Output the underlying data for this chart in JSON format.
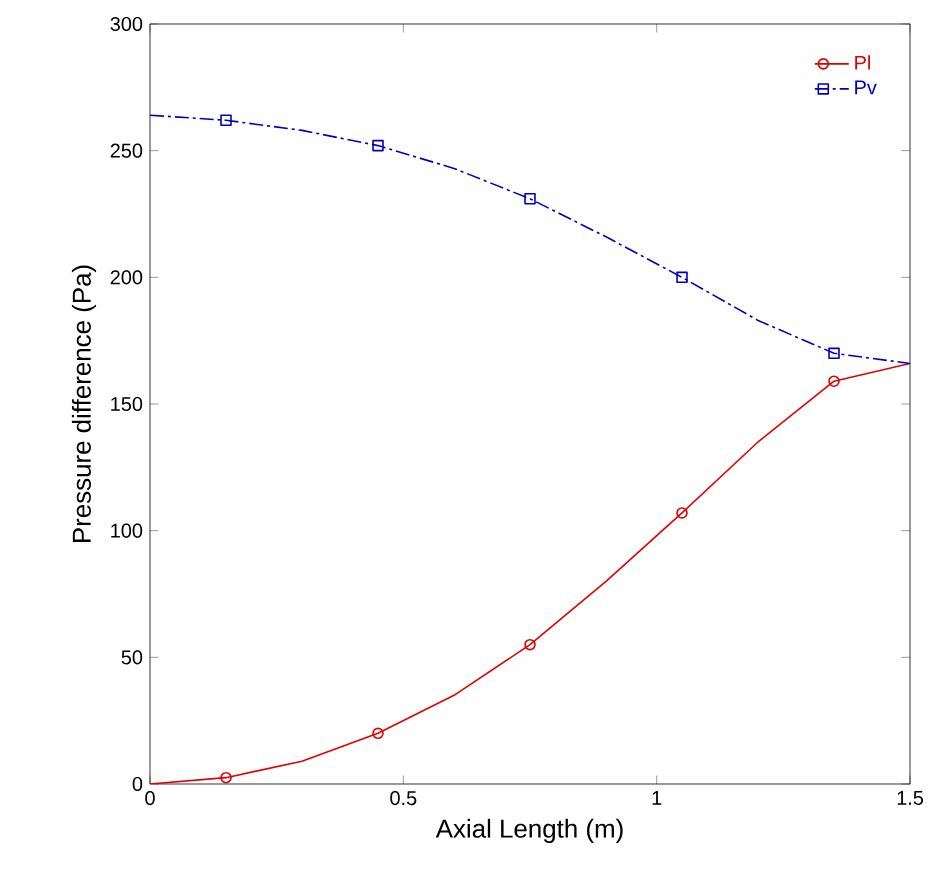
{
  "chart_data": {
    "type": "line",
    "xlabel": "Axial Length (m)",
    "ylabel": "Pressure difference (Pa)",
    "x": [
      0,
      0.15,
      0.3,
      0.45,
      0.6,
      0.75,
      0.9,
      1.05,
      1.2,
      1.35,
      1.5
    ],
    "series": [
      {
        "color": "#e00000",
        "marker": "none",
        "line_style": "solid",
        "values": [
          0,
          2.5,
          9,
          20,
          35,
          55,
          80,
          107,
          135,
          159,
          166
        ]
      },
      {
        "name": "Pl",
        "type": "scatter",
        "color": "#e00000",
        "marker": "circle",
        "line_style": "solid",
        "x": [
          0.15,
          0.45,
          0.75,
          1.05,
          1.35
        ],
        "values": [
          2.5,
          20,
          55,
          107,
          159
        ]
      },
      {
        "color": "#0000c0",
        "marker": "none",
        "line_style": "dashed",
        "values": [
          264,
          262,
          258,
          252,
          243,
          231,
          216,
          200,
          183,
          170,
          166
        ]
      },
      {
        "name": "Pv",
        "type": "scatter",
        "color": "#0000c0",
        "marker": "square",
        "line_style": "dashed",
        "x": [
          0.15,
          0.45,
          0.75,
          1.05,
          1.35
        ],
        "values": [
          262,
          252,
          231,
          200,
          170
        ]
      }
    ],
    "xlim": [
      0,
      1.5
    ],
    "xticks": [
      0,
      0.5,
      1,
      1.5
    ],
    "ylim": [
      0,
      300
    ],
    "yticks": [
      0,
      50,
      100,
      150,
      200,
      250,
      300
    ],
    "grid": false,
    "legend": "top right"
  }
}
